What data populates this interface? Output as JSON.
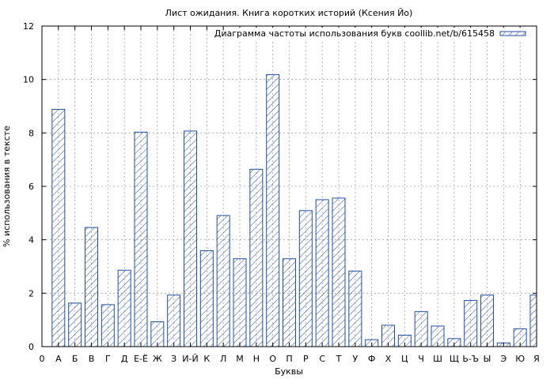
{
  "chart_data": {
    "type": "bar",
    "title": "Лист ожидания. Книга коротких историй (Ксения Йо)",
    "xlabel": "Буквы",
    "ylabel": "% использования в тексте",
    "ylim": [
      0,
      12
    ],
    "yticks": [
      0,
      2,
      4,
      6,
      8,
      10,
      12
    ],
    "grid": true,
    "legend_position": "top-right",
    "x_tick_labels": [
      "0",
      "А",
      "Б",
      "В",
      "Г",
      "Д",
      "Е-Ё",
      "Ж",
      "З",
      "И-Й",
      "К",
      "Л",
      "М",
      "Н",
      "О",
      "П",
      "Р",
      "С",
      "Т",
      "У",
      "Ф",
      "Х",
      "Ц",
      "Ч",
      "Ш",
      "Щ",
      "Ь-Ъ",
      "Ы",
      "Э",
      "Ю",
      "Я"
    ],
    "categories": [
      "А",
      "Б",
      "В",
      "Г",
      "Д",
      "Е-Ё",
      "Ж",
      "З",
      "И-Й",
      "К",
      "Л",
      "М",
      "Н",
      "О",
      "П",
      "Р",
      "С",
      "Т",
      "У",
      "Ф",
      "Х",
      "Ц",
      "Ч",
      "Ш",
      "Щ",
      "Ь-Ъ",
      "Ы",
      "Э",
      "Ю",
      "Я"
    ],
    "series": [
      {
        "name": "Диаграмма частоты использования букв coollib.net/b/615458",
        "values": [
          8.88,
          1.63,
          4.46,
          1.57,
          2.86,
          8.03,
          0.93,
          1.93,
          8.07,
          3.59,
          4.91,
          3.29,
          6.64,
          10.18,
          3.29,
          5.09,
          5.5,
          5.56,
          2.83,
          0.26,
          0.8,
          0.43,
          1.31,
          0.77,
          0.3,
          1.73,
          1.93,
          0.14,
          0.67,
          1.93
        ]
      }
    ],
    "colors": {
      "bar_stroke": "#1f4fa8",
      "grid": "#a0a0a0"
    }
  }
}
